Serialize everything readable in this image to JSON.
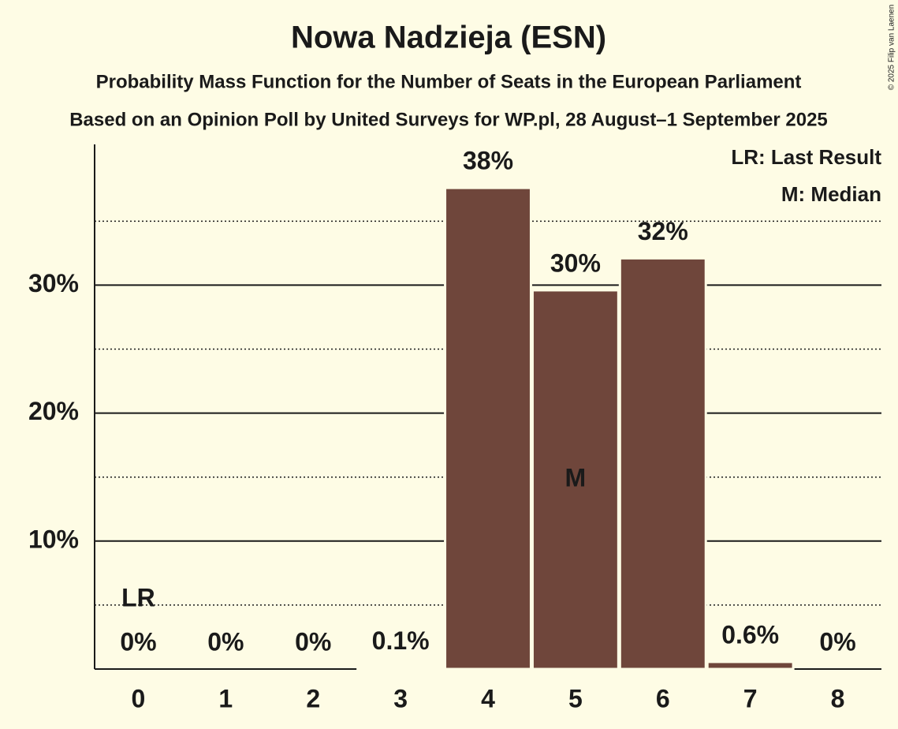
{
  "chart_data": {
    "type": "bar",
    "title": "Nowa Nadzieja (ESN)",
    "subtitle": "Probability Mass Function for the Number of Seats in the European Parliament",
    "subtitle2": "Based on an Opinion Poll by United Surveys for WP.pl, 28 August–1 September 2025",
    "copyright": "© 2025 Filip van Laenen",
    "categories": [
      "0",
      "1",
      "2",
      "3",
      "4",
      "5",
      "6",
      "7",
      "8"
    ],
    "values": [
      0,
      0,
      0,
      0.1,
      37.6,
      29.6,
      32.1,
      0.56,
      0
    ],
    "value_labels": [
      "0%",
      "0%",
      "0%",
      "0.1%",
      "38%",
      "30%",
      "32%",
      "0.6%",
      "0%"
    ],
    "color": "#6f463b",
    "ylim": [
      0,
      41
    ],
    "yticks": [
      {
        "value": 10,
        "label": "10%"
      },
      {
        "value": 20,
        "label": "20%"
      },
      {
        "value": 30,
        "label": "30%"
      }
    ],
    "minor_yticks": [
      5,
      15,
      25,
      35
    ],
    "grid": true,
    "annotations": [
      {
        "text": "LR",
        "category": 0
      },
      {
        "text": "M",
        "category": 5
      }
    ],
    "legend": [
      "LR: Last Result",
      "M: Median"
    ],
    "legend_position": "top-right"
  }
}
